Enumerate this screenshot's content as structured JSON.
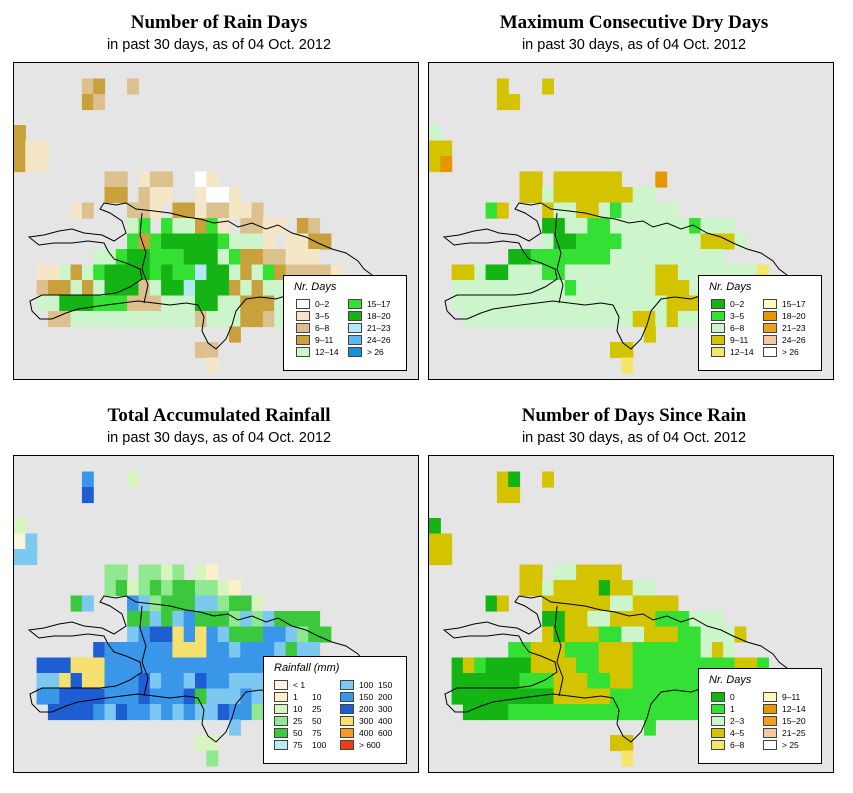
{
  "panels": [
    {
      "id": "rain-days",
      "title": "Number of Rain Days",
      "subtitle": "in past 30 days, as of  04 Oct. 2012",
      "legend": {
        "title": "Nr. Days",
        "items": [
          {
            "label": "0–2",
            "color": "#ffffff"
          },
          {
            "label": "3–5",
            "color": "#f5e6c8"
          },
          {
            "label": "6–8",
            "color": "#dcc08e"
          },
          {
            "label": "9–11",
            "color": "#c9a13c"
          },
          {
            "label": "12–14",
            "color": "#ccf5cc"
          },
          {
            "label": "15–17",
            "color": "#33e033"
          },
          {
            "label": "18–20",
            "color": "#14b414"
          },
          {
            "label": "21–23",
            "color": "#b5e8f5"
          },
          {
            "label": "24–26",
            "color": "#5cb8f0"
          },
          {
            "label": "> 26",
            "color": "#1890d8"
          }
        ]
      },
      "grid": {
        "rows": [
          "....................................",
          "......CD..C.........................",
          "......DC............................",
          "....................................",
          "D...................................",
          "DBB.................................",
          "DBB.................................",
          "........CC.BCC..AB..................",
          "........DD.CBB..BAAB................",
          ".....BC...CCB.DDBCCBBC..............",
          "..........EF.FEEDFB.CCBB.DC.........",
          "..........FDFGGGGGFEEEB.BBDD........",
          ".......EEFGGFFFGGGEFDDCCBBB.........",
          "..BBEDEFGGGGFGFFHGGEDEFDCCCCB.......",
          "..CDDEDEGGGCEGGHGGGDEDEEEEEEBB......",
          "..EEGGGFFFCCCEEEGGEEDDDEDDDEBB......",
          "...CCEEEEEEEEEEECEEEDDCEEEE.........",
          "...................D................",
          "................CC..................",
          ".................B..................",
          "...................................."
        ],
        "palette": {
          "A": "#ffffff",
          "B": "#f5e6c8",
          "C": "#dcc08e",
          "D": "#c9a13c",
          "E": "#ccf5cc",
          "F": "#33e033",
          "G": "#14b414",
          "H": "#b5e8f5",
          "I": "#5cb8f0",
          "J": "#1890d8"
        }
      }
    },
    {
      "id": "dry-days",
      "title": "Maximum Consecutive Dry Days",
      "subtitle": "in past 30 days, as of  04 Oct. 2012",
      "legend": {
        "title": "Nr. Days",
        "items": [
          {
            "label": "0–2",
            "color": "#14b414"
          },
          {
            "label": "3–5",
            "color": "#33e033"
          },
          {
            "label": "6–8",
            "color": "#ccf5cc"
          },
          {
            "label": "9–11",
            "color": "#d4c400"
          },
          {
            "label": "12–14",
            "color": "#f5e66b"
          },
          {
            "label": "15–17",
            "color": "#fff8c0"
          },
          {
            "label": "18–20",
            "color": "#e69600"
          },
          {
            "label": "21–23",
            "color": "#f0a020"
          },
          {
            "label": "24–26",
            "color": "#f5c8a0"
          },
          {
            "label": "> 26",
            "color": "#ffffff"
          }
        ]
      },
      "grid": {
        "rows": [
          "....................................",
          "......D...D.........................",
          "......DD............................",
          "....................................",
          "C...................................",
          "DD..................................",
          "DG..................................",
          "........DD.DDDDDD...G...............",
          "........DDCDDDDDDDCC................",
          ".....BD...DCCDDCBCCCCC..............",
          "..........AACCBBCCCCCCCBCCC.........",
          "..........CAABBBBCCCCCCCDDDC........",
          ".......AABBBBBBBCCCCCCCCCC..........",
          "..DDCAACCCBBCCCCCCCCDDCCCCCCCE......",
          "..CCCCCCCCCCBCCCCCCCDDDCCCCDDD......",
          "..CCCCCCCCCCCCCCCCCCCDDDCCCCCC......",
          "...CCCCCCCCCCCCCCCDDCDCCCCC.........",
          "...................D................",
          "................DD..................",
          ".................E..................",
          "...................................."
        ],
        "palette": {
          "A": "#14b414",
          "B": "#33e033",
          "C": "#ccf5cc",
          "D": "#d4c400",
          "E": "#f5e66b",
          "F": "#fff8c0",
          "G": "#e69600",
          "H": "#f0a020",
          "I": "#f5c8a0",
          "J": "#ffffff"
        }
      }
    },
    {
      "id": "rainfall",
      "title": "Total Accumulated Rainfall",
      "subtitle": "in past 30 days, as of  04 Oct. 2012",
      "legend": {
        "title": "Rainfall (mm)",
        "items": [
          {
            "label": "< 1",
            "label2": "",
            "color": "#fff4e0"
          },
          {
            "label": "1",
            "label2": "10",
            "color": "#fdf0c8"
          },
          {
            "label": "10",
            "label2": "25",
            "color": "#d8f5c0"
          },
          {
            "label": "25",
            "label2": "50",
            "color": "#90e890"
          },
          {
            "label": "50",
            "label2": "75",
            "color": "#3cc83c"
          },
          {
            "label": "75",
            "label2": "100",
            "color": "#b8ecf5"
          },
          {
            "label": "100",
            "label2": "150",
            "color": "#7cc8f0"
          },
          {
            "label": "150",
            "label2": "200",
            "color": "#3a96e8"
          },
          {
            "label": "200",
            "label2": "300",
            "color": "#1e5ed2"
          },
          {
            "label": "300",
            "label2": "400",
            "color": "#f5e070"
          },
          {
            "label": "400",
            "label2": "600",
            "color": "#f59a20"
          },
          {
            "label": "> 600",
            "label2": "",
            "color": "#f03c14"
          }
        ]
      },
      "grid": {
        "rows": [
          "....................................",
          "......G...C.........................",
          "......H.............................",
          "....................................",
          "C...................................",
          "AF..................................",
          "FF..................................",
          "........DD.DDCD.CB..................",
          "........DECDEDEEDDCB................",
          ".....EF...GFDEEEFFDEEC..............",
          "..........EEFEFGEEEDFDFEEEE.........",
          "..........FGHHIJIJFEEEGGFDEE........",
          ".......HGGGGJJIIIJJFGGGFEFF.........",
          "..HHHIIIJGGGGGGGGGGGGGHHGHFFE.......",
          "..FFIHIIGGGHFGGFHGGFFFFFFFGGGD......",
          "..GGHHHHGGGHGGGHEFFFGFFFFFFGFE......",
          "...HHHHGFHGGFGFGFFHGGDGGF...........",
          "...................F................",
          "................CC..................",
          ".................D..................",
          "...................................."
        ],
        "palette": {
          "A": "#fff4e0",
          "B": "#fdf0c8",
          "C": "#d8f5c0",
          "D": "#90e890",
          "E": "#3cc83c",
          "F": "#7cc8f0",
          "G": "#3a96e8",
          "H": "#1e5ed2",
          "I": "#f5e070",
          "J": "#3a96e8"
        }
      }
    },
    {
      "id": "days-since-rain",
      "title": "Number of Days Since Rain",
      "subtitle": "in past 30 days, as of  04 Oct. 2012",
      "legend": {
        "title": "Nr. Days",
        "items": [
          {
            "label": "0",
            "color": "#14b414"
          },
          {
            "label": "1",
            "color": "#33e033"
          },
          {
            "label": "2–3",
            "color": "#ccf5cc"
          },
          {
            "label": "4–5",
            "color": "#d4c400"
          },
          {
            "label": "6–8",
            "color": "#f5e66b"
          },
          {
            "label": "9–11",
            "color": "#fff8c0"
          },
          {
            "label": "12–14",
            "color": "#e69600"
          },
          {
            "label": "15–20",
            "color": "#f0a020"
          },
          {
            "label": "21–25",
            "color": "#f5c8a0"
          },
          {
            "label": "> 25",
            "color": "#ffffff"
          }
        ]
      },
      "grid": {
        "rows": [
          "....................................",
          "......DA..D.........................",
          "......DD............................",
          "....................................",
          "A...................................",
          "DD..................................",
          "DD..................................",
          "........DD.CCDDDD...................",
          "........DDCDDDDADDCC................",
          ".....AD...DDDDDDCCDDDD..............",
          "..........AADDCCDDDDBBBCCC..........",
          "..........DADDDBBCCDDDBBCCCD........",
          ".......BBDDDBBBDDDBBBBBBCDC.........",
          "..ADBAAAADDDDBBDDDBBBBBBBBBDDB......",
          "..AAAAAABBBDDDBBDDBBBBBBBBBBBCC.....",
          "..AAAAAAAAADDDDDBBBBBBBBBBBBBB......",
          "...AAAABBBBBBBBBBBBBBBBBBBB.........",
          "...................B................",
          "................DD..................",
          ".................E..................",
          "...................................."
        ],
        "palette": {
          "A": "#14b414",
          "B": "#33e033",
          "C": "#ccf5cc",
          "D": "#d4c400",
          "E": "#f5e66b",
          "F": "#fff8c0",
          "G": "#e69600",
          "H": "#f0a020",
          "I": "#f5c8a0",
          "J": "#ffffff"
        }
      }
    }
  ]
}
